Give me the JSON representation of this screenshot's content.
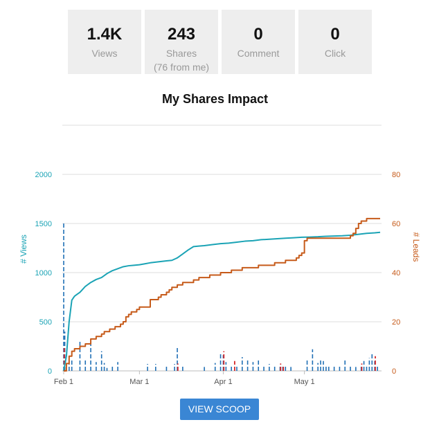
{
  "stats": [
    {
      "value": "1.4K",
      "label": "Views",
      "sub": ""
    },
    {
      "value": "243",
      "label": "Shares",
      "sub": "(76 from me)"
    },
    {
      "value": "0",
      "label": "Comment",
      "sub": ""
    },
    {
      "value": "0",
      "label": "Click",
      "sub": ""
    }
  ],
  "button": {
    "label": "VIEW SCOOP"
  },
  "colors": {
    "views": "#1aa3b5",
    "leads": "#c65a19",
    "bar_blue": "#1f6fb5",
    "bar_red": "#d62728",
    "grid": "#dddddd"
  },
  "chart_data": {
    "type": "line",
    "title": "My Shares Impact",
    "xlabel": "",
    "ylabel": "# Views",
    "y2label": "# Leads",
    "x_ticks": [
      "Feb 1",
      "Mar 1",
      "Apr 1",
      "May 1"
    ],
    "x_tick_days": [
      0,
      28,
      59,
      89
    ],
    "x_range_days": [
      0,
      117
    ],
    "ylim": [
      0,
      2000
    ],
    "y_ticks": [
      0,
      500,
      1000,
      1500,
      2000
    ],
    "y2lim": [
      0,
      80
    ],
    "y2_ticks": [
      0,
      20,
      40,
      60,
      80
    ],
    "grid": true,
    "series": [
      {
        "name": "# Views",
        "axis": "left",
        "x": [
          0,
          1,
          2,
          3,
          4,
          5,
          6,
          7,
          8,
          10,
          12,
          14,
          16,
          18,
          20,
          22,
          24,
          26,
          28,
          30,
          32,
          35,
          38,
          40,
          42,
          44,
          46,
          48,
          50,
          52,
          55,
          58,
          61,
          64,
          67,
          70,
          73,
          76,
          79,
          82,
          85,
          88,
          91,
          94,
          97,
          100,
          103,
          106,
          109,
          112,
          115,
          117
        ],
        "y": [
          0,
          150,
          500,
          720,
          760,
          780,
          800,
          830,
          860,
          900,
          930,
          950,
          990,
          1020,
          1040,
          1060,
          1070,
          1075,
          1080,
          1090,
          1100,
          1110,
          1120,
          1125,
          1150,
          1190,
          1230,
          1265,
          1270,
          1275,
          1285,
          1295,
          1300,
          1310,
          1320,
          1325,
          1335,
          1340,
          1345,
          1350,
          1355,
          1360,
          1362,
          1365,
          1370,
          1372,
          1375,
          1380,
          1390,
          1400,
          1405,
          1410
        ]
      },
      {
        "name": "# Leads",
        "axis": "right",
        "x": [
          0,
          1,
          2,
          3,
          4,
          6,
          8,
          10,
          12,
          14,
          15,
          16,
          17,
          18,
          19,
          20,
          21,
          22,
          23,
          24,
          25,
          26,
          27,
          28,
          30,
          32,
          34,
          35,
          36,
          38,
          39,
          40,
          42,
          44,
          46,
          48,
          50,
          52,
          54,
          56,
          58,
          60,
          62,
          64,
          66,
          68,
          70,
          72,
          74,
          76,
          78,
          80,
          82,
          84,
          86,
          87,
          88,
          89,
          90,
          91,
          92,
          93,
          95,
          97,
          99,
          101,
          103,
          105,
          106,
          107,
          108,
          109,
          110,
          112,
          114,
          116,
          117
        ],
        "y": [
          0,
          3,
          6,
          8,
          9,
          10,
          11,
          13,
          14,
          15,
          16,
          16,
          17,
          17,
          18,
          18,
          19,
          20,
          22,
          23,
          24,
          24,
          25,
          26,
          26,
          29,
          29,
          30,
          31,
          32,
          33,
          34,
          35,
          36,
          36,
          37,
          38,
          38,
          39,
          39,
          40,
          40,
          41,
          41,
          42,
          42,
          42,
          43,
          43,
          43,
          44,
          44,
          45,
          45,
          46,
          47,
          48,
          53,
          54,
          54,
          54,
          54,
          54,
          54,
          54,
          54,
          54,
          54,
          55,
          56,
          58,
          60,
          61,
          62,
          62,
          62,
          62
        ]
      }
    ],
    "bars": {
      "days": [
        0,
        0.4,
        2,
        3,
        6,
        8,
        10,
        12,
        14,
        15,
        16,
        18,
        20,
        31,
        34,
        38,
        41,
        42,
        44,
        52,
        56,
        58,
        59,
        60,
        62,
        64,
        66,
        68,
        70,
        72,
        74,
        76,
        78,
        80,
        81,
        82,
        84,
        90,
        92,
        94,
        95,
        96,
        97,
        98,
        100,
        102,
        104,
        106,
        108,
        110,
        111,
        112,
        113,
        114,
        115,
        116
      ],
      "values": [
        1500,
        400,
        150,
        120,
        300,
        120,
        300,
        90,
        200,
        80,
        30,
        60,
        90,
        70,
        70,
        60,
        70,
        250,
        60,
        40,
        80,
        180,
        160,
        90,
        60,
        60,
        140,
        120,
        90,
        120,
        50,
        70,
        50,
        60,
        60,
        60,
        40,
        120,
        220,
        80,
        120,
        100,
        60,
        60,
        60,
        50,
        120,
        60,
        40,
        60,
        100,
        50,
        130,
        170,
        100,
        50
      ],
      "leads_days": [
        0,
        42,
        59,
        63,
        80,
        81,
        110,
        115
      ],
      "leads_values": [
        10,
        3,
        8,
        4,
        3,
        2,
        3,
        6
      ]
    }
  }
}
